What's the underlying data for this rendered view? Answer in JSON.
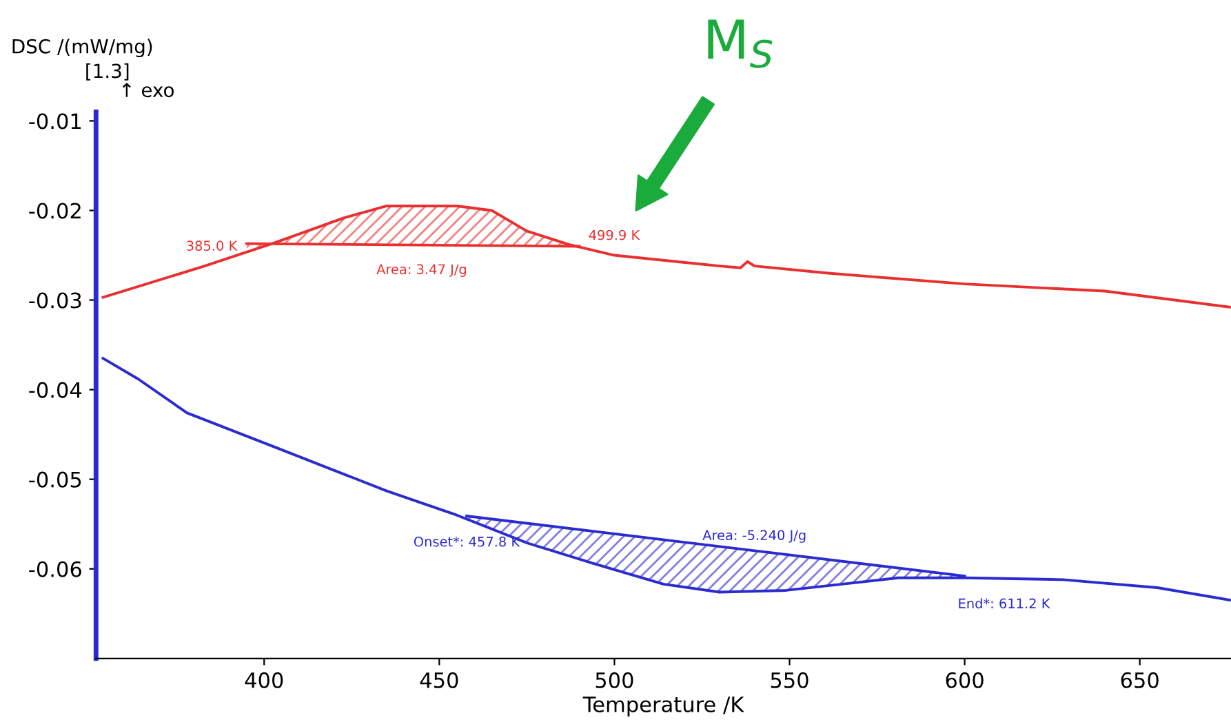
{
  "chart_data": {
    "type": "line",
    "xlabel": "Temperature /K",
    "ylabel": "DSC /(mW/mg)",
    "xlim": [
      352,
      676
    ],
    "ylim": [
      -0.07,
      -0.009
    ],
    "xticks": [
      400,
      450,
      500,
      550,
      600,
      650
    ],
    "yticks": [
      -0.01,
      -0.02,
      -0.03,
      -0.04,
      -0.05,
      -0.06
    ],
    "grid": false,
    "legend": false,
    "marker": "none",
    "line_style": "solid",
    "series": [
      {
        "color": "#e8302f",
        "x": [
          354,
          383,
          403,
          423,
          435,
          455,
          465,
          475,
          487,
          500,
          530,
          536,
          538,
          540,
          561,
          600,
          640,
          676
        ],
        "values": [
          -0.0297,
          -0.0262,
          -0.0236,
          -0.0208,
          -0.0195,
          -0.0195,
          -0.02,
          -0.0223,
          -0.0238,
          -0.025,
          -0.0262,
          -0.0264,
          -0.0257,
          -0.0262,
          -0.027,
          -0.0282,
          -0.029,
          -0.0308
        ]
      },
      {
        "color": "#e8302f",
        "x": [
          395,
          490
        ],
        "values": [
          -0.0237,
          -0.024
        ]
      },
      {
        "color": "#2b2bd0",
        "x": [
          354,
          364,
          378,
          403,
          435,
          455,
          475,
          494,
          514,
          530,
          549,
          565,
          581,
          600,
          628,
          655,
          676
        ],
        "values": [
          -0.0365,
          -0.0388,
          -0.0426,
          -0.0464,
          -0.0513,
          -0.054,
          -0.0571,
          -0.0594,
          -0.0617,
          -0.0626,
          -0.0624,
          -0.0617,
          -0.061,
          -0.061,
          -0.0612,
          -0.0621,
          -0.0635
        ]
      },
      {
        "color": "#2b2bd0",
        "x": [
          457.8,
          600
        ],
        "values": [
          -0.0541,
          -0.0608
        ]
      }
    ],
    "annotations": [
      "[1.3]",
      "↑ exo",
      {
        "text": "385.0 K",
        "x": 385,
        "y": -0.0262
      },
      {
        "text": "Area: 3.47 J/g",
        "x": 445,
        "y": -0.0237
      },
      {
        "text": "499.9 K",
        "x": 499.9,
        "y": -0.025
      },
      {
        "text": "Onset*: 457.8 K",
        "x": 457.8,
        "y": -0.0541
      },
      {
        "text": "Area: -5.240 J/g",
        "x": 540,
        "y": -0.0585
      },
      {
        "text": "End*: 611.2 K",
        "x": 611.2,
        "y": -0.061
      },
      "M$_{S}$"
    ]
  }
}
